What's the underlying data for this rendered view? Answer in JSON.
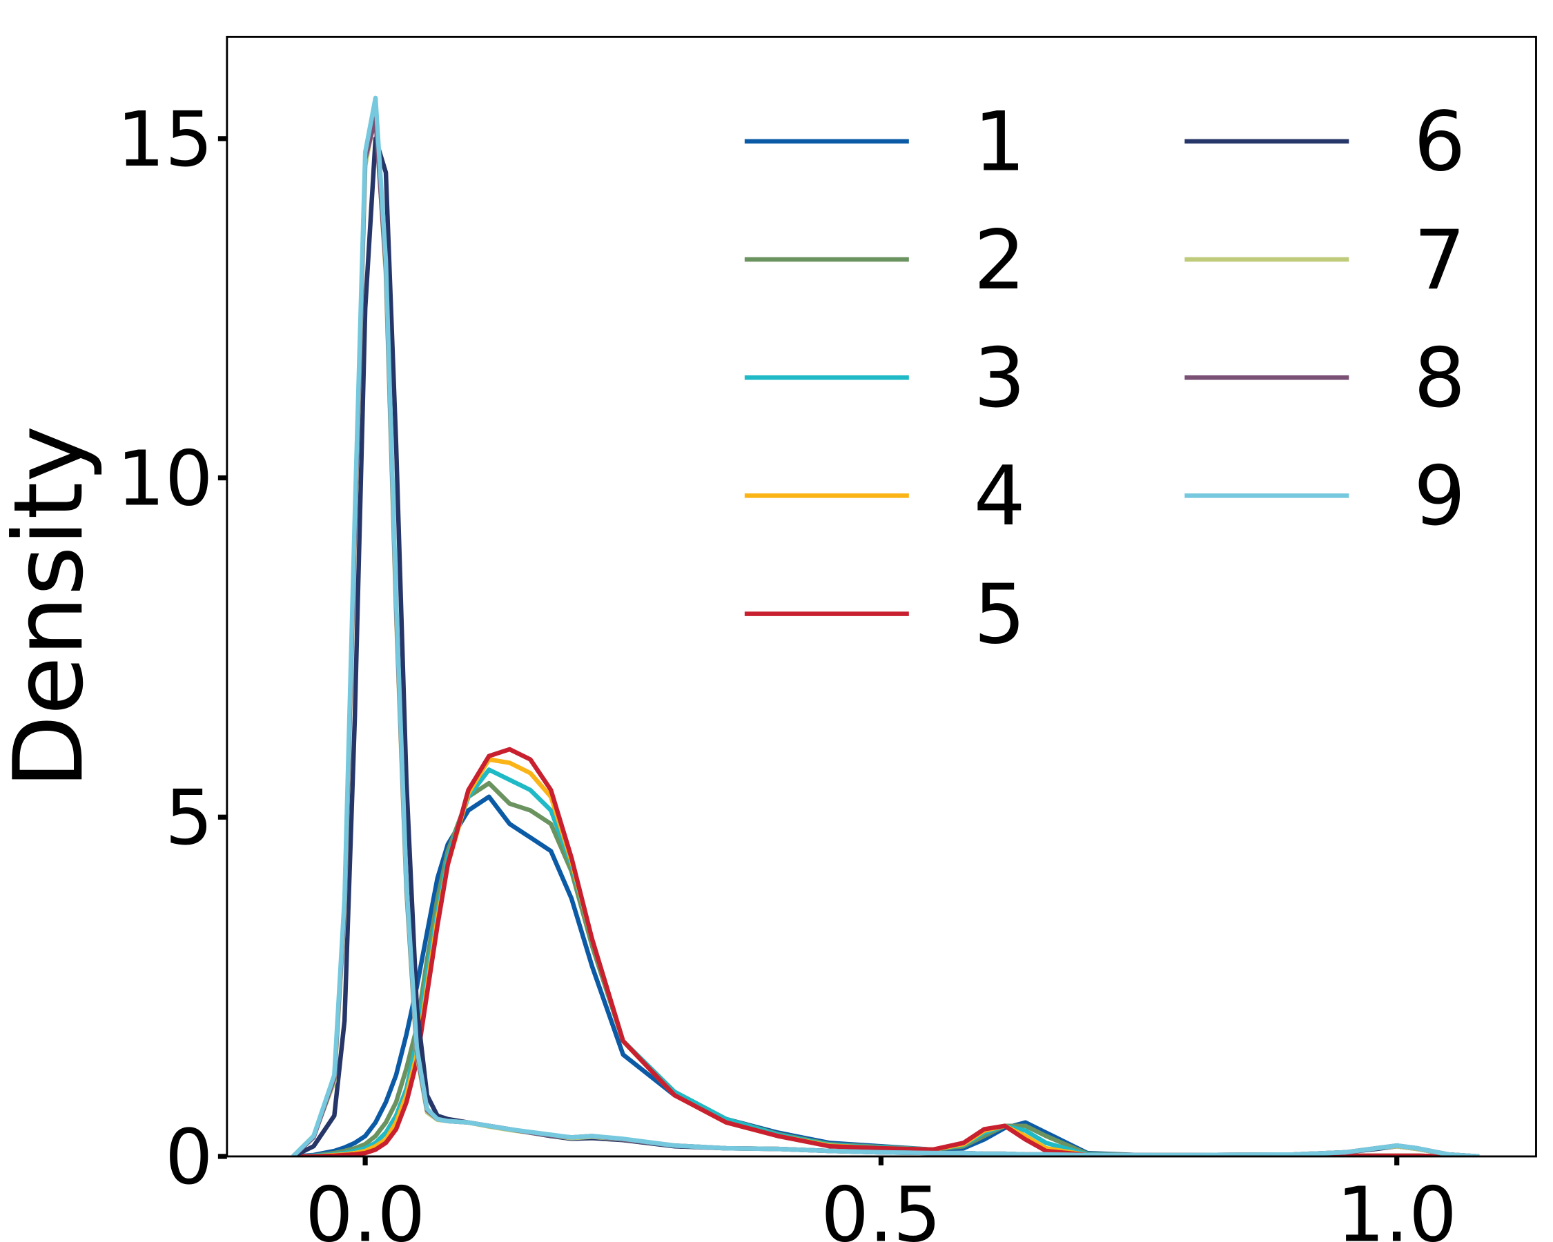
{
  "chart_data": {
    "type": "line",
    "ylabel": "Density",
    "x": [
      -0.07,
      -0.05,
      -0.03,
      -0.02,
      -0.01,
      0,
      0.01,
      0.02,
      0.03,
      0.04,
      0.05,
      0.06,
      0.07,
      0.08,
      0.1,
      0.12,
      0.14,
      0.16,
      0.18,
      0.2,
      0.22,
      0.25,
      0.3,
      0.35,
      0.4,
      0.45,
      0.5,
      0.55,
      0.58,
      0.6,
      0.62,
      0.64,
      0.66,
      0.7,
      0.75,
      0.8,
      0.9,
      0.95,
      0.98,
      1.0,
      1.02,
      1.05,
      1.08
    ],
    "series": [
      {
        "name": "1",
        "color": "#0b5aa6",
        "values": [
          0,
          0.02,
          0.08,
          0.13,
          0.2,
          0.3,
          0.5,
          0.8,
          1.2,
          1.8,
          2.5,
          3.3,
          4.1,
          4.6,
          5.1,
          5.3,
          4.9,
          4.7,
          4.5,
          3.8,
          2.8,
          1.5,
          0.9,
          0.55,
          0.35,
          0.2,
          0.15,
          0.1,
          0.12,
          0.25,
          0.42,
          0.5,
          0.35,
          0.05,
          0.02,
          0.01,
          0.01,
          0.01,
          0.01,
          0.01,
          0.01,
          0,
          0
        ]
      },
      {
        "name": "2",
        "color": "#6a9360",
        "values": [
          0,
          0.01,
          0.05,
          0.08,
          0.12,
          0.18,
          0.3,
          0.5,
          0.8,
          1.3,
          1.9,
          2.9,
          3.8,
          4.5,
          5.3,
          5.5,
          5.2,
          5.1,
          4.9,
          4.2,
          3.1,
          1.7,
          0.95,
          0.55,
          0.33,
          0.18,
          0.14,
          0.1,
          0.15,
          0.3,
          0.45,
          0.45,
          0.3,
          0.04,
          0.02,
          0.01,
          0.01,
          0.01,
          0.01,
          0.01,
          0.01,
          0,
          0
        ]
      },
      {
        "name": "3",
        "color": "#1fbac6",
        "values": [
          0,
          0.01,
          0.03,
          0.05,
          0.08,
          0.12,
          0.2,
          0.35,
          0.6,
          1.0,
          1.7,
          2.7,
          3.6,
          4.4,
          5.3,
          5.7,
          5.55,
          5.4,
          5.1,
          4.3,
          3.2,
          1.7,
          0.95,
          0.55,
          0.32,
          0.17,
          0.13,
          0.1,
          0.17,
          0.35,
          0.45,
          0.38,
          0.2,
          0.03,
          0.02,
          0.01,
          0.01,
          0.01,
          0.01,
          0.01,
          0.01,
          0,
          0
        ]
      },
      {
        "name": "4",
        "color": "#fbb416",
        "values": [
          0,
          0,
          0.02,
          0.03,
          0.05,
          0.08,
          0.15,
          0.25,
          0.5,
          0.9,
          1.5,
          2.5,
          3.5,
          4.3,
          5.35,
          5.85,
          5.8,
          5.65,
          5.3,
          4.35,
          3.2,
          1.7,
          0.9,
          0.5,
          0.3,
          0.16,
          0.12,
          0.1,
          0.18,
          0.38,
          0.45,
          0.3,
          0.12,
          0.02,
          0.01,
          0.01,
          0.01,
          0.01,
          0.01,
          0.01,
          0.01,
          0,
          0
        ]
      },
      {
        "name": "5",
        "color": "#c8202f",
        "values": [
          0,
          0,
          0.01,
          0.02,
          0.03,
          0.05,
          0.1,
          0.2,
          0.4,
          0.8,
          1.4,
          2.4,
          3.4,
          4.3,
          5.4,
          5.9,
          6.0,
          5.85,
          5.4,
          4.4,
          3.2,
          1.7,
          0.9,
          0.5,
          0.3,
          0.15,
          0.12,
          0.1,
          0.2,
          0.4,
          0.45,
          0.25,
          0.08,
          0.02,
          0.01,
          0.01,
          0.01,
          0.01,
          0.01,
          0.01,
          0.01,
          0,
          0
        ]
      },
      {
        "name": "6",
        "color": "#263668",
        "values": [
          0,
          0.15,
          0.6,
          2.0,
          6.5,
          12.5,
          15.0,
          14.5,
          10.5,
          5.5,
          2.2,
          0.9,
          0.6,
          0.55,
          0.5,
          0.45,
          0.4,
          0.35,
          0.3,
          0.26,
          0.27,
          0.24,
          0.15,
          0.12,
          0.11,
          0.08,
          0.06,
          0.05,
          0.05,
          0.04,
          0.04,
          0.03,
          0.03,
          0.02,
          0.02,
          0.02,
          0.03,
          0.06,
          0.11,
          0.15,
          0.11,
          0.03,
          0
        ]
      },
      {
        "name": "7",
        "color": "#bfcb7b",
        "values": [
          0,
          0.3,
          1.1,
          3.6,
          9.2,
          14.6,
          15.4,
          13.0,
          8.0,
          3.9,
          1.5,
          0.65,
          0.54,
          0.52,
          0.5,
          0.44,
          0.39,
          0.35,
          0.31,
          0.27,
          0.29,
          0.25,
          0.16,
          0.12,
          0.11,
          0.08,
          0.06,
          0.05,
          0.05,
          0.04,
          0.04,
          0.03,
          0.03,
          0.02,
          0.02,
          0.02,
          0.03,
          0.06,
          0.12,
          0.15,
          0.11,
          0.03,
          0
        ]
      },
      {
        "name": "8",
        "color": "#7a5075",
        "values": [
          0,
          0.28,
          1.15,
          3.7,
          9.3,
          14.7,
          15.3,
          13.1,
          8.1,
          3.95,
          1.55,
          0.68,
          0.55,
          0.52,
          0.5,
          0.45,
          0.4,
          0.35,
          0.31,
          0.28,
          0.3,
          0.25,
          0.16,
          0.12,
          0.11,
          0.08,
          0.06,
          0.05,
          0.05,
          0.04,
          0.04,
          0.03,
          0.03,
          0.02,
          0.02,
          0.02,
          0.03,
          0.06,
          0.12,
          0.16,
          0.12,
          0.03,
          0
        ]
      },
      {
        "name": "9",
        "color": "#75c8dd",
        "values": [
          0,
          0.3,
          1.2,
          3.8,
          9.5,
          14.8,
          15.6,
          13.2,
          8.2,
          4.0,
          1.6,
          0.7,
          0.55,
          0.52,
          0.5,
          0.45,
          0.4,
          0.36,
          0.32,
          0.28,
          0.3,
          0.26,
          0.16,
          0.12,
          0.11,
          0.08,
          0.06,
          0.05,
          0.05,
          0.04,
          0.04,
          0.03,
          0.03,
          0.02,
          0.02,
          0.02,
          0.03,
          0.06,
          0.12,
          0.16,
          0.12,
          0.03,
          0
        ]
      }
    ],
    "xlim": [
      -0.134,
      1.135
    ],
    "ylim": [
      0,
      16.5
    ],
    "xticks": [
      {
        "value": 0,
        "label": "0.0"
      },
      0.5,
      {
        "value": 1,
        "label": "1.0"
      }
    ],
    "yticks": [
      0,
      5,
      10,
      15
    ],
    "grid": false,
    "legend": "upper right"
  }
}
